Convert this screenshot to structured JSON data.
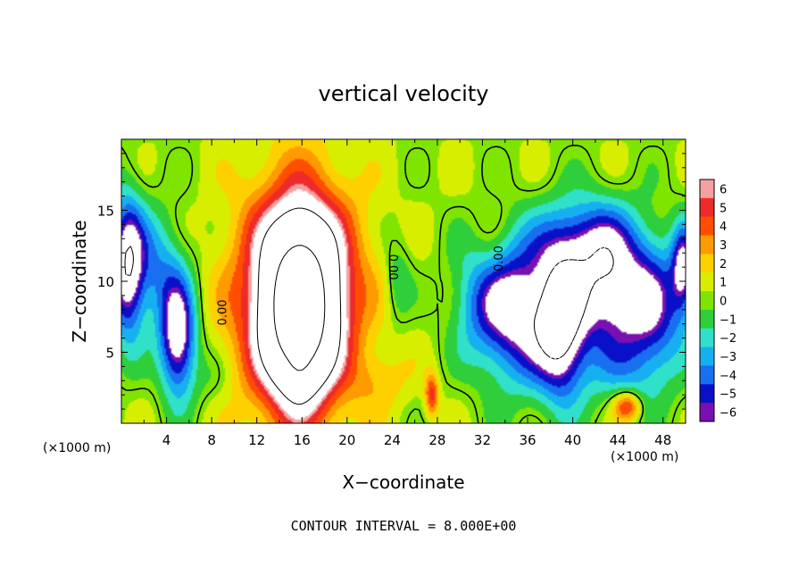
{
  "chart_data": {
    "type": "heatmap",
    "title": "vertical velocity",
    "xlabel": "X−coordinate",
    "ylabel": "Z−coordinate",
    "x_unit_label": "(×1000 m)",
    "z_unit_label": "(×1000 m)",
    "footer": "CONTOUR INTERVAL = 8.000E+00",
    "xlim": [
      0,
      50
    ],
    "ylim": [
      0,
      20
    ],
    "x_ticks": [
      4,
      8,
      12,
      16,
      20,
      24,
      28,
      32,
      36,
      40,
      44,
      48
    ],
    "y_ticks": [
      5,
      10,
      15
    ],
    "colorbar": {
      "levels": [
        6,
        5,
        4,
        3,
        2,
        1,
        0,
        -1,
        -2,
        -3,
        -4,
        -5,
        -6
      ],
      "level_labels": [
        "6",
        "5",
        "4",
        "3",
        "2",
        "1",
        "0",
        "−1",
        "−2",
        "−3",
        "−4",
        "−5",
        "−6"
      ],
      "colors": [
        "#f4a0a0",
        "#ee2a2a",
        "#ff4e00",
        "#ff9a00",
        "#ffd000",
        "#d8ee00",
        "#7fe400",
        "#2ecf3a",
        "#30e0c8",
        "#16b0f0",
        "#1870f0",
        "#0a10c8",
        "#7a10b0"
      ]
    },
    "above_range_color": "#ffffff",
    "below_range_color": "#ffffff",
    "background_value": 0.4,
    "features": [
      {
        "x": 15.5,
        "z": 8.5,
        "rx": 5.2,
        "rz": 8.0,
        "amp": 8.6
      },
      {
        "x": 15.8,
        "z": 8.0,
        "rx": 2.6,
        "rz": 5.2,
        "amp": 16
      },
      {
        "x": 15.8,
        "z": 7.5,
        "rx": 0.7,
        "rz": 2.5,
        "amp": 18
      },
      {
        "x": 16.5,
        "z": 11.0,
        "rx": 4.5,
        "rz": 6.0,
        "amp": 2.0
      },
      {
        "x": 23.0,
        "z": 3.0,
        "rx": 2.5,
        "rz": 2.0,
        "amp": 1.5
      },
      {
        "x": 27.5,
        "z": 2.0,
        "rx": 0.6,
        "rz": 1.5,
        "amp": 4.5
      },
      {
        "x": 44.8,
        "z": 1.2,
        "rx": 1.2,
        "rz": 1.0,
        "amp": 5.0
      },
      {
        "x": 5.0,
        "z": 6.0,
        "rx": 1.6,
        "rz": 4.0,
        "amp": -8
      },
      {
        "x": 0.5,
        "z": 11.0,
        "rx": 1.5,
        "rz": 5.0,
        "amp": -7.5
      },
      {
        "x": 3.0,
        "z": 11.0,
        "rx": 2.5,
        "rz": 4.0,
        "amp": -3.5
      },
      {
        "x": 35.0,
        "z": 8.0,
        "rx": 3.5,
        "rz": 5.0,
        "amp": -7.5
      },
      {
        "x": 39.0,
        "z": 7.0,
        "rx": 2.2,
        "rz": 5.0,
        "amp": -8.5
      },
      {
        "x": 43.0,
        "z": 9.5,
        "rx": 3.0,
        "rz": 4.5,
        "amp": -6.5
      },
      {
        "x": 47.0,
        "z": 8.0,
        "rx": 3.0,
        "rz": 5.0,
        "amp": -6.0
      },
      {
        "x": 41.0,
        "z": 13.0,
        "rx": 4.0,
        "rz": 3.0,
        "amp": -4.0
      },
      {
        "x": 49.8,
        "z": 11.0,
        "rx": 1.0,
        "rz": 3.0,
        "amp": -6.0
      },
      {
        "x": 31.5,
        "z": 9.0,
        "rx": 2.5,
        "rz": 4.0,
        "amp": -2.5
      },
      {
        "x": 24.5,
        "z": 10.0,
        "rx": 1.2,
        "rz": 3.0,
        "amp": -2.0
      },
      {
        "x": 32.5,
        "z": 12.0,
        "rx": 2.0,
        "rz": 3.5,
        "amp": 1.2
      },
      {
        "x": 8.0,
        "z": 3.0,
        "rx": 2.0,
        "rz": 2.0,
        "amp": -1.0
      },
      {
        "x": 43.5,
        "z": 3.5,
        "rx": 4.0,
        "rz": 2.5,
        "amp": -1.5
      }
    ],
    "contour_labels": [
      {
        "text": "0.00",
        "x": 9.0,
        "z": 7.8,
        "rotate": -90
      },
      {
        "text": "0.00",
        "x": 24.0,
        "z": 11.0,
        "rotate": 90
      },
      {
        "text": "0.00",
        "x": 33.5,
        "z": 11.6,
        "rotate": -90
      }
    ]
  }
}
